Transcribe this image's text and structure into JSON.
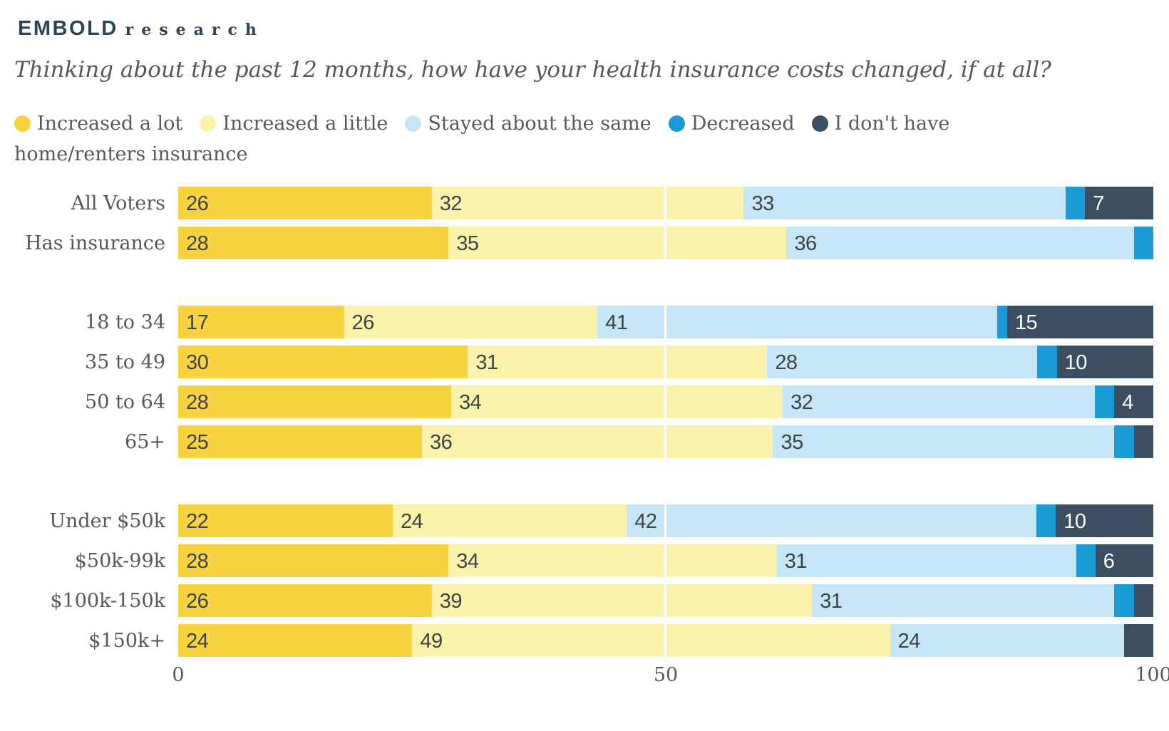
{
  "logo": {
    "primary": "EMBOLD",
    "secondary": "research"
  },
  "title": "Thinking about the past 12 months, how have your health insurance costs changed, if at all?",
  "colors": {
    "increased_a_lot": "#F7D340",
    "increased_a_little": "#FAF2AA",
    "stayed_same": "#C5E6F6",
    "decreased": "#1A9BD5",
    "no_insurance": "#3C4F62",
    "logo_navy": "#2D4356",
    "text_gray": "#54585D",
    "bar_label_dark": "#3E4347",
    "bar_label_light": "#FFFFFF"
  },
  "chart_data": {
    "type": "bar",
    "orientation": "horizontal-stacked",
    "title": "Thinking about the past 12 months, how have your health insurance costs changed, if at all?",
    "legend_position": "top",
    "grid": "white line at 50",
    "series_names": [
      "Increased a lot",
      "Increased a little",
      "Stayed about the same",
      "Decreased",
      "I don't have home/renters insurance"
    ],
    "series_colors": [
      "#F7D340",
      "#FAF2AA",
      "#C5E6F6",
      "#1A9BD5",
      "#3C4F62"
    ],
    "label_min_value": 4,
    "x_axis": {
      "min": 0,
      "max": 100,
      "ticks": [
        0,
        50,
        100
      ]
    },
    "groups": [
      {
        "rows": [
          {
            "label": "All Voters",
            "values": [
              26,
              32,
              33,
              2,
              7
            ]
          },
          {
            "label": "Has insurance",
            "values": [
              28,
              35,
              36,
              2,
              0
            ]
          }
        ]
      },
      {
        "rows": [
          {
            "label": "18 to 34",
            "values": [
              17,
              26,
              41,
              1,
              15
            ]
          },
          {
            "label": "35 to 49",
            "values": [
              30,
              31,
              28,
              2,
              10
            ]
          },
          {
            "label": "50 to 64",
            "values": [
              28,
              34,
              32,
              2,
              4
            ]
          },
          {
            "label": "65+",
            "values": [
              25,
              36,
              35,
              2,
              2
            ]
          }
        ]
      },
      {
        "rows": [
          {
            "label": "Under $50k",
            "values": [
              22,
              24,
              42,
              2,
              10
            ]
          },
          {
            "label": "$50k-99k",
            "values": [
              28,
              34,
              31,
              2,
              6
            ]
          },
          {
            "label": "$100k-150k",
            "values": [
              26,
              39,
              31,
              2,
              2
            ]
          },
          {
            "label": "$150k+",
            "values": [
              24,
              49,
              24,
              0,
              3
            ]
          }
        ]
      }
    ]
  }
}
